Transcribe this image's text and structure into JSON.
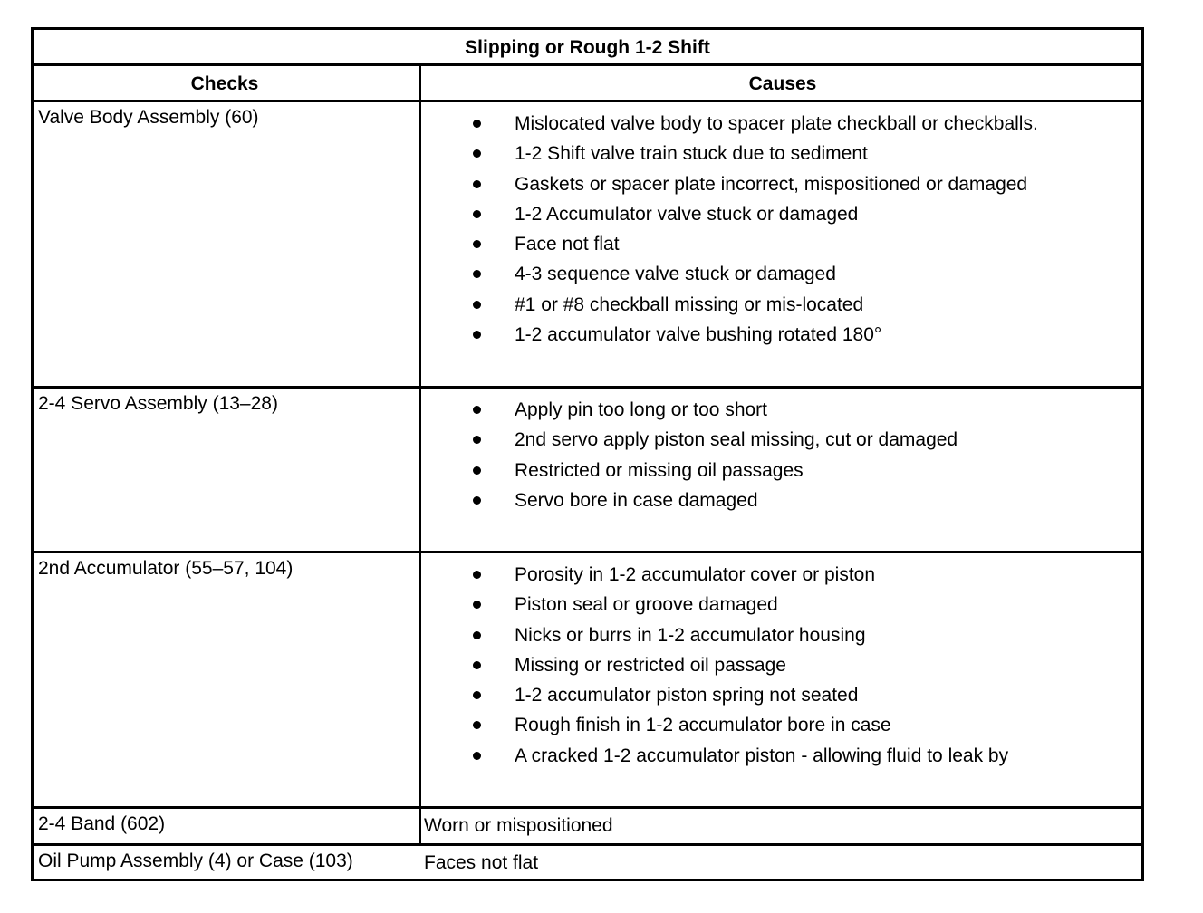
{
  "title": "Slipping or Rough 1-2 Shift",
  "headers": {
    "checks": "Checks",
    "causes": "Causes"
  },
  "rows": [
    {
      "check": "Valve Body Assembly (60)",
      "causes": [
        "Mislocated valve body to spacer plate checkball or checkballs.",
        "1-2 Shift valve train stuck due to sediment",
        "Gaskets or spacer plate incorrect, mispositioned or damaged",
        "1-2 Accumulator valve stuck or damaged",
        "Face not flat",
        "4-3 sequence valve stuck or damaged",
        "#1 or #8 checkball missing or mis-located",
        "1-2 accumulator valve bushing rotated 180°"
      ]
    },
    {
      "check": "2-4 Servo Assembly (13–28)",
      "causes": [
        "Apply pin too long or too short",
        "2nd servo apply piston seal missing, cut or damaged",
        "Restricted or missing oil passages",
        "Servo bore in case damaged"
      ]
    },
    {
      "check": "2nd Accumulator (55–57, 104)",
      "causes": [
        "Porosity in 1-2 accumulator cover or piston",
        "Piston seal or groove damaged",
        "Nicks or burrs in 1-2 accumulator housing",
        "Missing or restricted oil passage",
        "1-2 accumulator piston spring not seated",
        "Rough finish in 1-2 accumulator bore in case",
        "A cracked 1-2 accumulator piston - allowing fluid to leak by"
      ]
    },
    {
      "check": "2-4 Band (602)",
      "cause_text": "Worn or mispositioned"
    },
    {
      "check": "Oil Pump Assembly (4) or Case (103)",
      "cause_text": "Faces not flat"
    }
  ]
}
